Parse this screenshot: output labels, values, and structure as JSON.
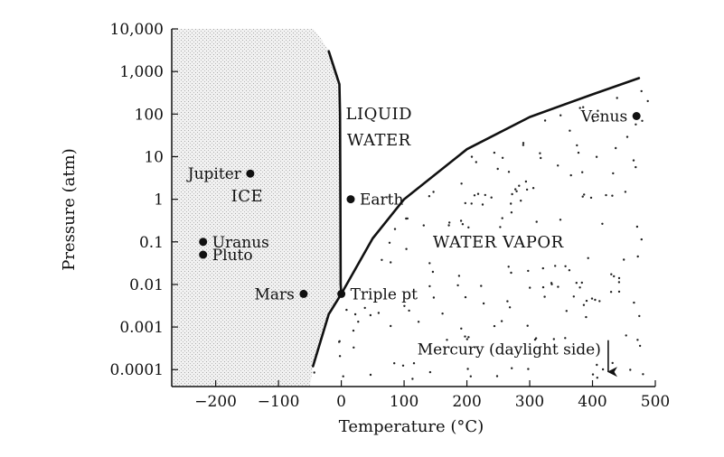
{
  "chart_data": {
    "type": "scatter",
    "xlabel": "Temperature (°C)",
    "ylabel": "Pressure (atm)",
    "xlim": [
      -270,
      500
    ],
    "ylim": [
      4e-05,
      10000
    ],
    "y_scale": "log",
    "grid": false,
    "x_ticks": [
      {
        "value": -200,
        "label": "−200"
      },
      {
        "value": -100,
        "label": "−100"
      },
      {
        "value": 0,
        "label": "0"
      },
      {
        "value": 100,
        "label": "100"
      },
      {
        "value": 200,
        "label": "200"
      },
      {
        "value": 300,
        "label": "300"
      },
      {
        "value": 400,
        "label": "400"
      },
      {
        "value": 500,
        "label": "500"
      }
    ],
    "y_ticks": [
      {
        "value": 10000,
        "label": "10,000"
      },
      {
        "value": 1000,
        "label": "1,000"
      },
      {
        "value": 100,
        "label": "100"
      },
      {
        "value": 10,
        "label": "10"
      },
      {
        "value": 1,
        "label": "1"
      },
      {
        "value": 0.1,
        "label": "0.1"
      },
      {
        "value": 0.01,
        "label": "0.01"
      },
      {
        "value": 0.001,
        "label": "0.001"
      },
      {
        "value": 0.0001,
        "label": "0.0001"
      }
    ],
    "regions": [
      {
        "label": "ICE",
        "x": -150,
        "y": 1.2,
        "lines": [
          "ICE"
        ]
      },
      {
        "label": "LIQUID WATER",
        "x": 60,
        "y": 50,
        "lines": [
          "LIQUID",
          "WATER"
        ]
      },
      {
        "label": "WATER VAPOR",
        "x": 250,
        "y": 0.1,
        "lines": [
          "WATER VAPOR"
        ]
      }
    ],
    "boundaries": [
      {
        "name": "melting",
        "points": [
          [
            -20,
            3000
          ],
          [
            -3,
            500
          ],
          [
            -2,
            100
          ],
          [
            -1.5,
            1
          ],
          [
            -1,
            0.01
          ],
          [
            0,
            0.006
          ]
        ]
      },
      {
        "name": "vaporization",
        "points": [
          [
            -45,
            0.00012
          ],
          [
            -20,
            0.002
          ],
          [
            0,
            0.006
          ],
          [
            50,
            0.12
          ],
          [
            100,
            1
          ],
          [
            200,
            15
          ],
          [
            300,
            85
          ],
          [
            400,
            290
          ],
          [
            474,
            700
          ]
        ]
      }
    ],
    "points": [
      {
        "name": "Jupiter",
        "x": -145,
        "y": 4,
        "label_side": "left"
      },
      {
        "name": "Earth",
        "x": 15,
        "y": 1,
        "label_side": "right"
      },
      {
        "name": "Uranus",
        "x": -220,
        "y": 0.1,
        "label_side": "right"
      },
      {
        "name": "Pluto",
        "x": -220,
        "y": 0.05,
        "label_side": "right"
      },
      {
        "name": "Mars",
        "x": -60,
        "y": 0.006,
        "label_side": "left"
      },
      {
        "name": "Triple pt",
        "x": 0,
        "y": 0.006,
        "label_side": "right"
      },
      {
        "name": "Venus",
        "x": 470,
        "y": 90,
        "label_side": "left"
      }
    ],
    "annotations": [
      {
        "text": "Mercury (daylight side)",
        "x": 425,
        "y": 0.0003,
        "arrow": "down"
      }
    ]
  }
}
